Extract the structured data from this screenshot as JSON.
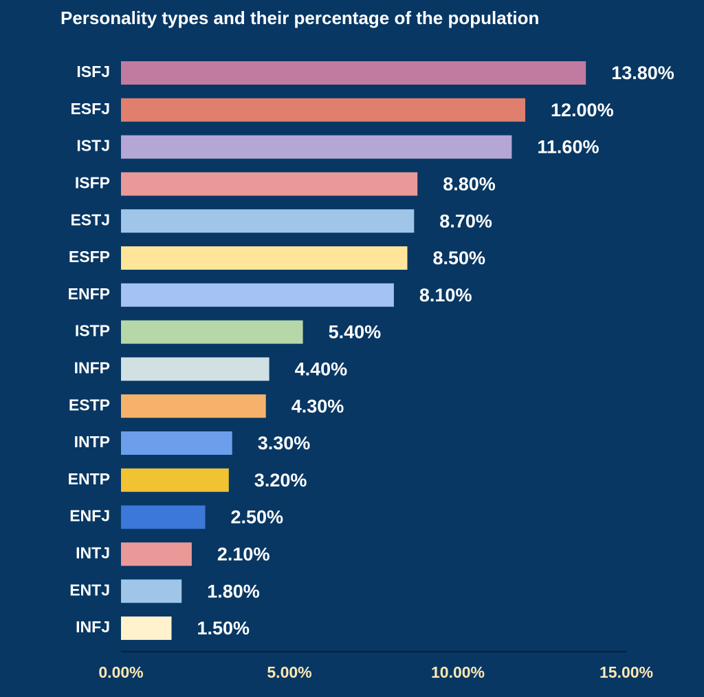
{
  "chart_data": {
    "type": "bar",
    "orientation": "horizontal",
    "title": "Personality types and their percentage of the population",
    "categories": [
      "ISFJ",
      "ESFJ",
      "ISTJ",
      "ISFP",
      "ESTJ",
      "ESFP",
      "ENFP",
      "ISTP",
      "INFP",
      "ESTP",
      "INTP",
      "ENTP",
      "ENFJ",
      "INTJ",
      "ENTJ",
      "INFJ"
    ],
    "values": [
      13.8,
      12.0,
      11.6,
      8.8,
      8.7,
      8.5,
      8.1,
      5.4,
      4.4,
      4.3,
      3.3,
      3.2,
      2.5,
      2.1,
      1.8,
      1.5
    ],
    "value_labels": [
      "13.80%",
      "12.00%",
      "11.60%",
      "8.80%",
      "8.70%",
      "8.50%",
      "8.10%",
      "5.40%",
      "4.40%",
      "4.30%",
      "3.30%",
      "3.20%",
      "2.50%",
      "2.10%",
      "1.80%",
      "1.50%"
    ],
    "colors": [
      "#c27ba0",
      "#e07f6e",
      "#b4a7d6",
      "#ea9999",
      "#9fc5e8",
      "#ffe599",
      "#a4c2f4",
      "#b6d7a8",
      "#d0e0e3",
      "#f6b26b",
      "#6d9eeb",
      "#f1c232",
      "#3c78d8",
      "#ea9999",
      "#9fc5e8",
      "#fff2cc"
    ],
    "xlim": [
      0,
      15
    ],
    "xticks": [
      {
        "value": 0,
        "label": "0.00%"
      },
      {
        "value": 5,
        "label": "5.00%"
      },
      {
        "value": 10,
        "label": "10.00%"
      },
      {
        "value": 15,
        "label": "15.00%"
      }
    ],
    "grid": false
  }
}
